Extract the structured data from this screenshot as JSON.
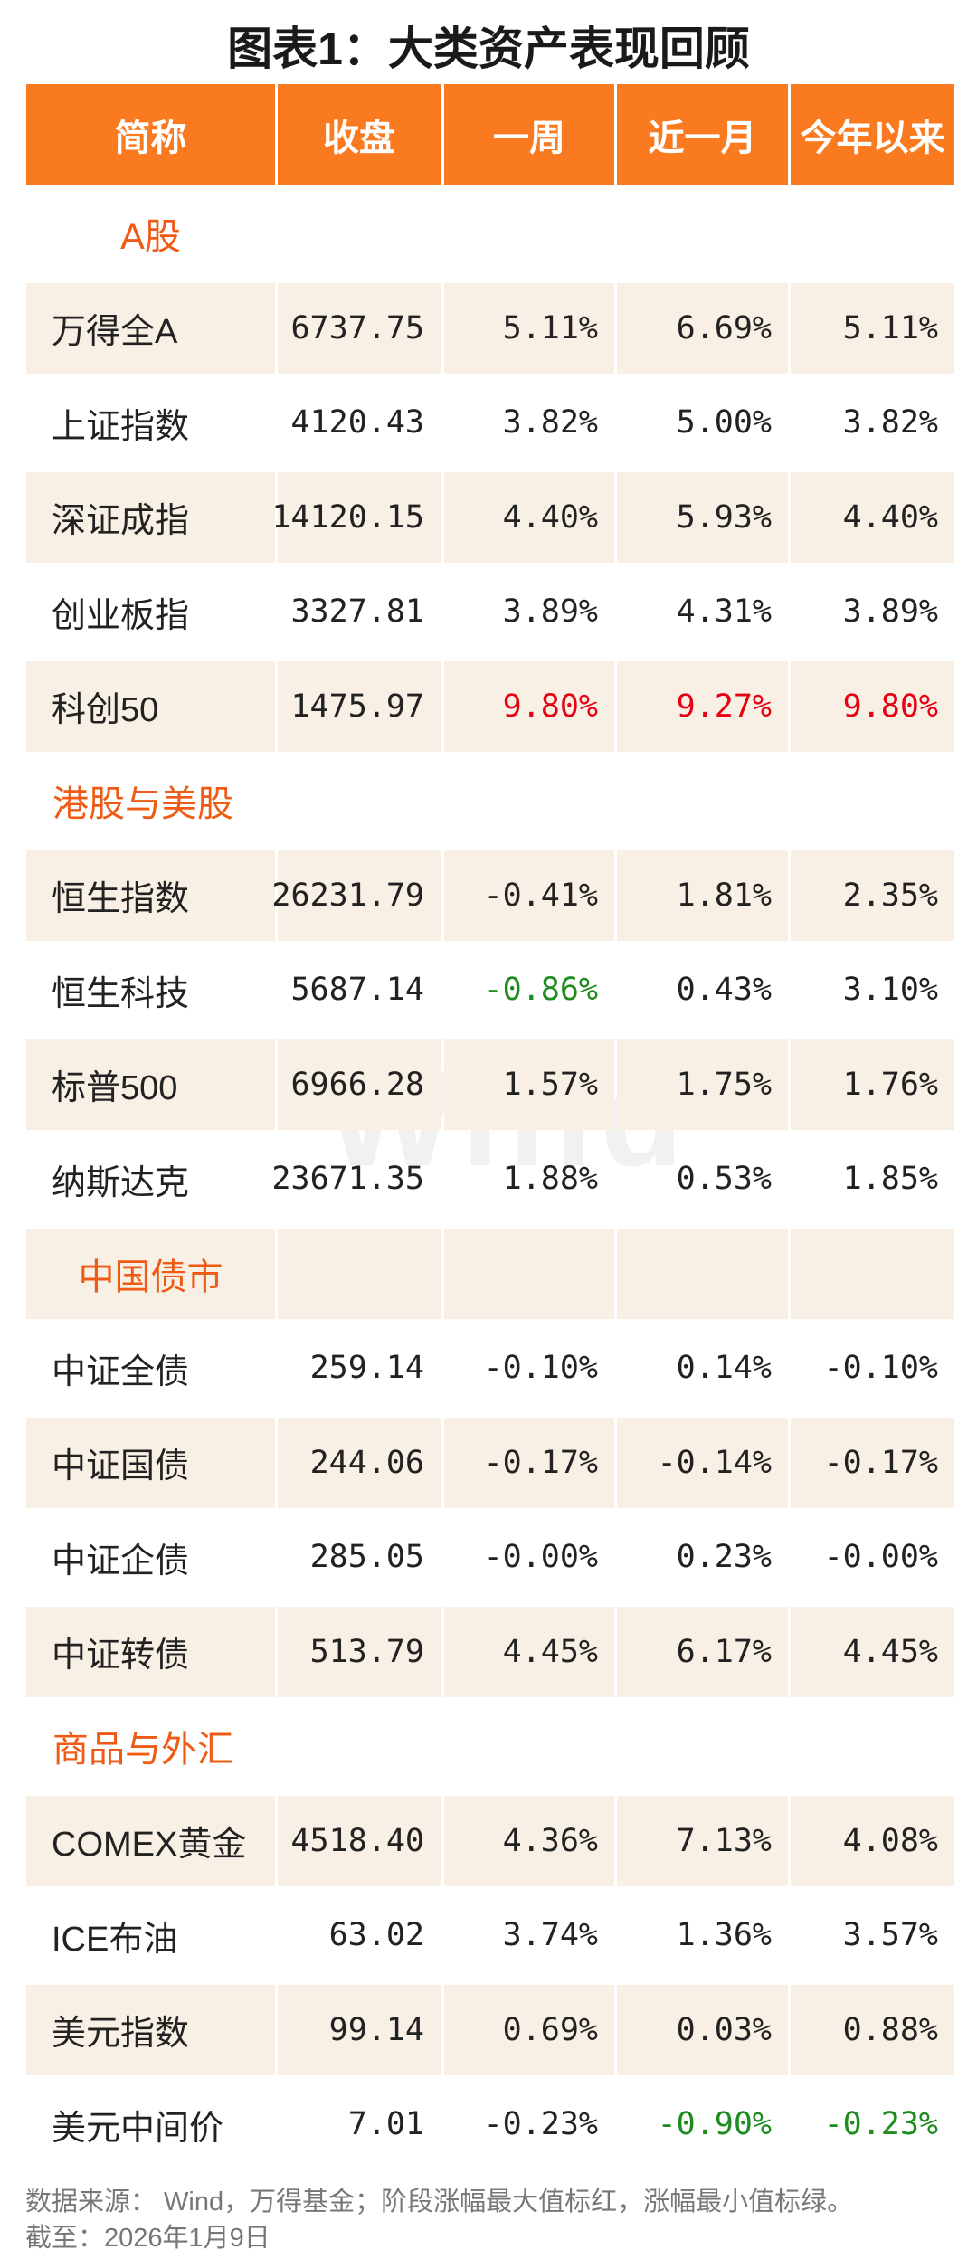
{
  "title": "图表1：大类资产表现回顾",
  "watermark": "Wind",
  "table": {
    "header": [
      "简称",
      "收盘",
      "一周",
      "近一月",
      "今年以来"
    ],
    "sections": [
      {
        "title": "A股",
        "rows": [
          {
            "cells": [
              "万得全A",
              "6737.75",
              "5.11%",
              "6.69%",
              "5.11%"
            ]
          },
          {
            "cells": [
              "上证指数",
              "4120.43",
              "3.82%",
              "5.00%",
              "3.82%"
            ]
          },
          {
            "cells": [
              "深证成指",
              "14120.15",
              "4.40%",
              "5.93%",
              "4.40%"
            ]
          },
          {
            "cells": [
              "创业板指",
              "3327.81",
              "3.89%",
              "4.31%",
              "3.89%"
            ]
          },
          {
            "cells": [
              "科创50",
              "1475.97",
              "9.80%",
              "9.27%",
              "9.80%"
            ],
            "highlight": {
              "color": "#e60012",
              "columns": [
                2,
                3,
                4
              ]
            }
          }
        ]
      },
      {
        "title": "港股与美股",
        "rows": [
          {
            "cells": [
              "恒生指数",
              "26231.79",
              "-0.41%",
              "1.81%",
              "2.35%"
            ]
          },
          {
            "cells": [
              "恒生科技",
              "5687.14",
              "-0.86%",
              "0.43%",
              "3.10%"
            ],
            "highlight": {
              "color": "#1e8c1e",
              "columns": [
                2
              ]
            }
          },
          {
            "cells": [
              "标普500",
              "6966.28",
              "1.57%",
              "1.75%",
              "1.76%"
            ]
          },
          {
            "cells": [
              "纳斯达克",
              "23671.35",
              "1.88%",
              "0.53%",
              "1.85%"
            ]
          }
        ]
      },
      {
        "title": "中国债市",
        "rows": [
          {
            "cells": [
              "中证全债",
              "259.14",
              "-0.10%",
              "0.14%",
              "-0.10%"
            ]
          },
          {
            "cells": [
              "中证国债",
              "244.06",
              "-0.17%",
              "-0.14%",
              "-0.17%"
            ]
          },
          {
            "cells": [
              "中证企债",
              "285.05",
              "-0.00%",
              "0.23%",
              "-0.00%"
            ]
          },
          {
            "cells": [
              "中证转债",
              "513.79",
              "4.45%",
              "6.17%",
              "4.45%"
            ]
          }
        ]
      },
      {
        "title": "商品与外汇",
        "rows": [
          {
            "cells": [
              "COMEX黄金",
              "4518.40",
              "4.36%",
              "7.13%",
              "4.08%"
            ]
          },
          {
            "cells": [
              "ICE布油",
              "63.02",
              "3.74%",
              "1.36%",
              "3.57%"
            ]
          },
          {
            "cells": [
              "美元指数",
              "99.14",
              "0.69%",
              "0.03%",
              "0.88%"
            ]
          },
          {
            "cells": [
              "美元中间价",
              "7.01",
              "-0.23%",
              "-0.90%",
              "-0.23%"
            ],
            "highlight": {
              "color": "#1e8c1e",
              "columns": [
                3,
                4
              ]
            }
          }
        ]
      }
    ]
  },
  "footer": [
    "数据来源： Wind，万得基金；阶段涨幅最大值标红，涨幅最小值标绿。",
    "截至：2026年1月9日"
  ]
}
